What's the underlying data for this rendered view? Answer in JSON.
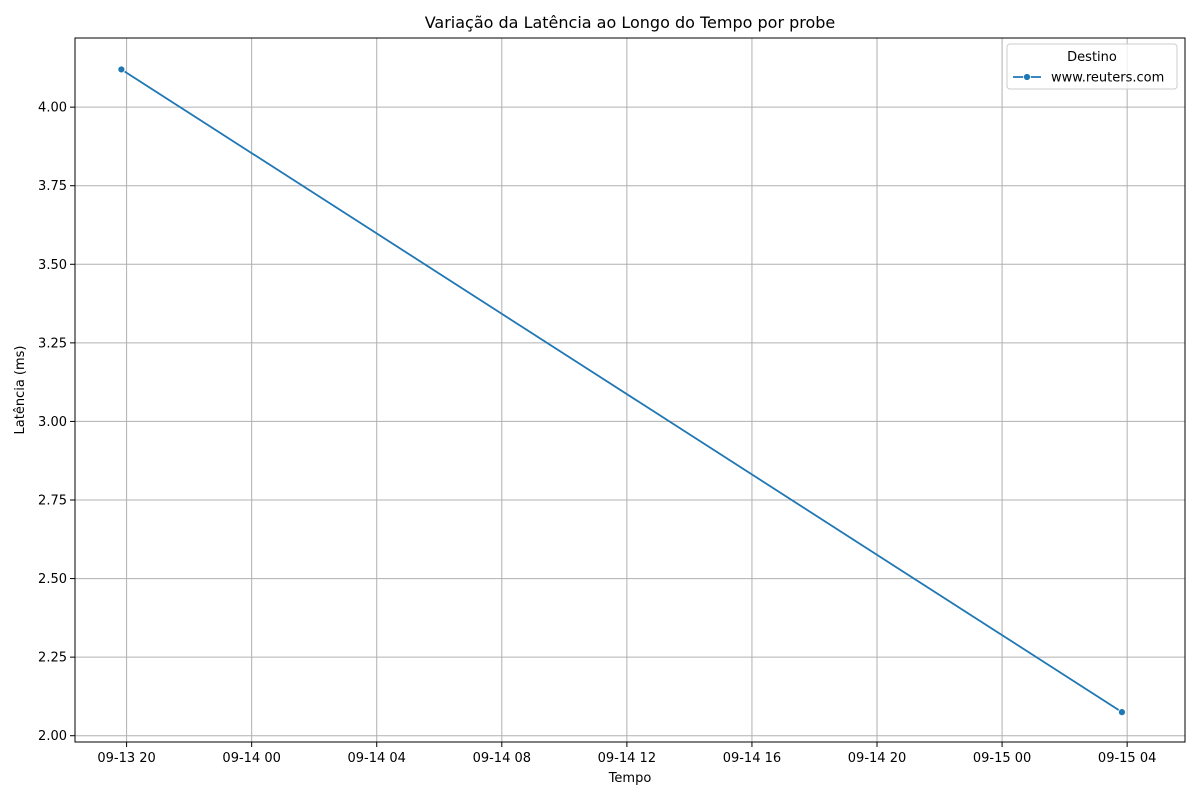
{
  "chart_data": {
    "type": "line",
    "title": "Variação da Latência ao Longo do Tempo por probe",
    "xlabel": "Tempo",
    "ylabel": "Latência (ms)",
    "x_axis_type": "time",
    "xlim": [
      "2024-09-13 18:21",
      "2024-09-15 05:51"
    ],
    "ylim": [
      1.98,
      4.22
    ],
    "x_ticks": [
      {
        "value": "2024-09-13 20:00",
        "label": "09-13 20"
      },
      {
        "value": "2024-09-14 00:00",
        "label": "09-14 00"
      },
      {
        "value": "2024-09-14 04:00",
        "label": "09-14 04"
      },
      {
        "value": "2024-09-14 08:00",
        "label": "09-14 08"
      },
      {
        "value": "2024-09-14 12:00",
        "label": "09-14 12"
      },
      {
        "value": "2024-09-14 16:00",
        "label": "09-14 16"
      },
      {
        "value": "2024-09-14 20:00",
        "label": "09-14 20"
      },
      {
        "value": "2024-09-15 00:00",
        "label": "09-15 00"
      },
      {
        "value": "2024-09-15 04:00",
        "label": "09-15 04"
      }
    ],
    "y_ticks": [
      {
        "value": 2.0,
        "label": "2.00"
      },
      {
        "value": 2.25,
        "label": "2.25"
      },
      {
        "value": 2.5,
        "label": "2.50"
      },
      {
        "value": 2.75,
        "label": "2.75"
      },
      {
        "value": 3.0,
        "label": "3.00"
      },
      {
        "value": 3.25,
        "label": "3.25"
      },
      {
        "value": 3.5,
        "label": "3.50"
      },
      {
        "value": 3.75,
        "label": "3.75"
      },
      {
        "value": 4.0,
        "label": "4.00"
      }
    ],
    "grid": true,
    "legend": {
      "title": "Destino",
      "placement": "top-right"
    },
    "series": [
      {
        "name": "www.reuters.com",
        "color": "#1f77b4",
        "marker": "circle",
        "points": [
          {
            "x": "2024-09-13 19:50",
            "y": 4.12
          },
          {
            "x": "2024-09-15 03:50",
            "y": 2.075
          }
        ]
      }
    ]
  }
}
